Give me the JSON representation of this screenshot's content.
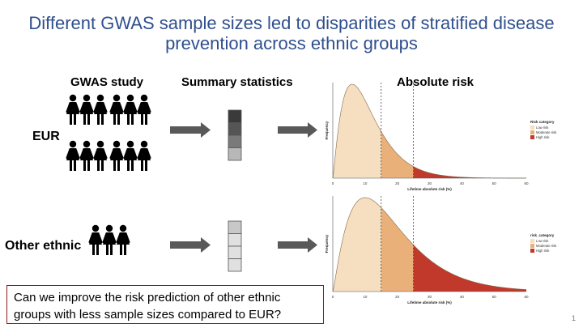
{
  "slide": {
    "title_line1": "Different GWAS sample sizes led to disparities of stratified disease",
    "title_line2": "prevention across ethnic groups",
    "col_gwas": "GWAS study",
    "col_summary": "Summary statistics",
    "col_risk": "Absolute risk",
    "row_eur": "EUR",
    "row_other": "Other ethnic",
    "question_line1": "Can we improve the risk prediction of other ethnic",
    "question_line2": "groups with less sample sizes compared to EUR?",
    "page_number": "1"
  },
  "colors": {
    "title": "#2f4f8f",
    "low_risk": "#f5dfc0",
    "moderate_risk": "#e9b07a",
    "high_risk": "#c0392b",
    "box_border": "#8b1a1a",
    "arrow": "#595959"
  },
  "summary_bars": {
    "eur": [
      "#3a3a3a",
      "#555555",
      "#7a7a7a",
      "#b8b8b8"
    ],
    "other": [
      "#c8c8c8",
      "#e0e0e0",
      "#e0e0e0",
      "#e0e0e0"
    ]
  },
  "chart_data": [
    {
      "type": "area",
      "xlabel": "Lifetime absolute risk (%)",
      "ylabel": "Frequency",
      "x_ticks": [
        "0",
        "10",
        "20",
        "30",
        "40",
        "50",
        "60"
      ],
      "xlim": [
        0,
        60
      ],
      "thresholds": [
        15,
        25
      ],
      "peak_x": 6,
      "legend_title": "Risk category",
      "legend": [
        "Low risk",
        "Moderate risk",
        "High risk"
      ],
      "legend_position": "right"
    },
    {
      "type": "area",
      "xlabel": "Lifetime absolute risk (%)",
      "ylabel": "Frequency",
      "x_ticks": [
        "0",
        "10",
        "20",
        "30",
        "40",
        "50",
        "60"
      ],
      "xlim": [
        0,
        60
      ],
      "thresholds": [
        15,
        25
      ],
      "peak_x": 10,
      "legend_title": "risk_category",
      "legend": [
        "Low risk",
        "Moderate risk",
        "High risk"
      ],
      "legend_position": "right"
    }
  ]
}
